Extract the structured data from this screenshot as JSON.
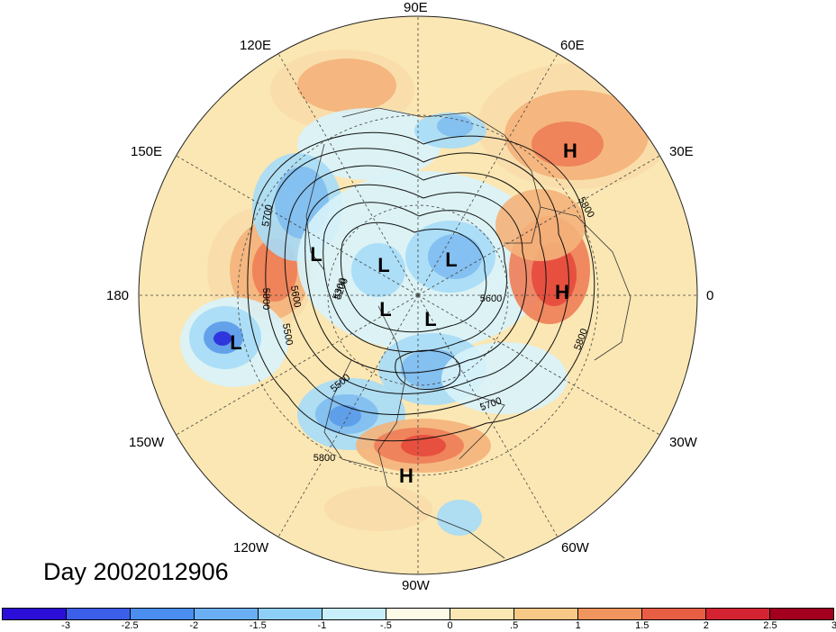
{
  "map": {
    "longitude_labels": {
      "top": "90E",
      "upper_left": "120E",
      "upper_right": "60E",
      "left_upper": "150E",
      "right_upper": "30E",
      "left": "180",
      "right": "0",
      "left_lower": "150W",
      "right_lower": "30W",
      "lower_left": "120W",
      "lower_right": "60W",
      "bottom": "90W"
    },
    "pressure_centers": [
      {
        "symbol": "H"
      },
      {
        "symbol": "H"
      },
      {
        "symbol": "H"
      },
      {
        "symbol": "L"
      },
      {
        "symbol": "L"
      },
      {
        "symbol": "L"
      },
      {
        "symbol": "L"
      },
      {
        "symbol": "L"
      },
      {
        "symbol": "L"
      }
    ],
    "contour_labels": [
      "5800",
      "5700",
      "5600",
      "5500",
      "5300",
      "5200",
      "5800",
      "5700",
      "5800",
      "5500",
      "5800",
      "5600"
    ],
    "day_label": "Day 2002012906",
    "anomaly_colors": {
      "neg3": "#2a2adc",
      "neg2_5": "#3f6fe6",
      "neg2": "#5b9be8",
      "neg1_5": "#7fbdf0",
      "neg1": "#a6dcf7",
      "neg0_5": "#d8f3fb",
      "pos0_5": "#fdf6d8",
      "pos1": "#f8ddaa",
      "pos1_5": "#f4b27a",
      "pos2": "#ee7d57",
      "pos2_5": "#e54a3c",
      "pos3": "#c4172d"
    }
  },
  "colorbar": {
    "colors": [
      "#2b0fd8",
      "#3b5fe8",
      "#4a8ef0",
      "#6aaff4",
      "#8ecff8",
      "#c8eefb",
      "#fdfbe6",
      "#fbe7b3",
      "#f8c887",
      "#f1955e",
      "#e85e45",
      "#d42433",
      "#a3001f"
    ],
    "labels": [
      "-3",
      "-2.5",
      "-2",
      "-1.5",
      "-1",
      "-.5",
      "0",
      ".5",
      "1",
      "1.5",
      "2",
      "2.5",
      "3"
    ]
  }
}
